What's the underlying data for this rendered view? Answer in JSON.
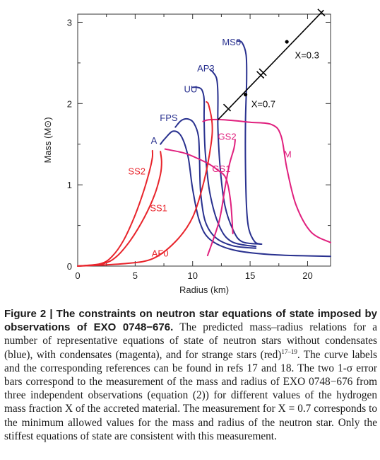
{
  "chart_data": {
    "type": "line",
    "xlabel": "Radius (km)",
    "ylabel": "Mass (M⊙)",
    "xlim": [
      0,
      22
    ],
    "ylim": [
      0,
      3.1
    ],
    "x_ticks": [
      "0",
      "5",
      "10",
      "15",
      "20"
    ],
    "y_ticks": [
      "0",
      "1",
      "2",
      "3"
    ],
    "colors": {
      "normal": "#29318f",
      "condensate": "#e0207e",
      "strange": "#e8242b",
      "constraint": "#000000"
    },
    "series": [
      {
        "name": "MS0",
        "group": "normal",
        "label_at": [
          14.2,
          2.76
        ],
        "points": [
          [
            15.9,
            0.27
          ],
          [
            15.4,
            0.3
          ],
          [
            14.9,
            0.45
          ],
          [
            14.7,
            0.7
          ],
          [
            14.6,
            1.2
          ],
          [
            14.6,
            1.8
          ],
          [
            14.7,
            2.3
          ],
          [
            14.65,
            2.6
          ],
          [
            14.3,
            2.75
          ],
          [
            13.9,
            2.77
          ]
        ]
      },
      {
        "name": "AP3",
        "group": "normal",
        "label_at": [
          11.9,
          2.44
        ],
        "points": [
          [
            16,
            0.27
          ],
          [
            14.3,
            0.3
          ],
          [
            13.5,
            0.45
          ],
          [
            12.8,
            0.75
          ],
          [
            12.4,
            1.2
          ],
          [
            12.2,
            1.7
          ],
          [
            12.2,
            2.1
          ],
          [
            12.1,
            2.3
          ],
          [
            11.8,
            2.38
          ],
          [
            11.5,
            2.42
          ]
        ]
      },
      {
        "name": "UU",
        "group": "normal",
        "label_at": [
          10.4,
          2.18
        ],
        "points": [
          [
            15.5,
            0.24
          ],
          [
            13.4,
            0.3
          ],
          [
            12.3,
            0.5
          ],
          [
            11.5,
            0.9
          ],
          [
            11.1,
            1.4
          ],
          [
            11.0,
            1.8
          ],
          [
            11.0,
            2.05
          ],
          [
            10.8,
            2.17
          ],
          [
            10.4,
            2.2
          ],
          [
            10.0,
            2.2
          ]
        ]
      },
      {
        "name": "FPS",
        "group": "normal",
        "label_at": [
          8.7,
          1.83
        ],
        "points": [
          [
            15.5,
            0.22
          ],
          [
            13.5,
            0.25
          ],
          [
            12.0,
            0.35
          ],
          [
            11.1,
            0.55
          ],
          [
            10.7,
            0.9
          ],
          [
            10.6,
            1.3
          ],
          [
            10.5,
            1.6
          ],
          [
            10.1,
            1.76
          ],
          [
            9.6,
            1.81
          ],
          [
            9.0,
            1.79
          ],
          [
            8.5,
            1.71
          ]
        ]
      },
      {
        "name": "A",
        "group": "normal",
        "label_at": [
          6.9,
          1.55
        ],
        "points": [
          [
            22,
            0.12
          ],
          [
            17,
            0.14
          ],
          [
            13.5,
            0.2
          ],
          [
            11.5,
            0.33
          ],
          [
            10.6,
            0.55
          ],
          [
            10.0,
            0.95
          ],
          [
            9.6,
            1.35
          ],
          [
            9.0,
            1.6
          ],
          [
            8.3,
            1.66
          ],
          [
            7.6,
            1.57
          ],
          [
            7.2,
            1.5
          ]
        ]
      },
      {
        "name": "GS2",
        "group": "condensate",
        "label_at": [
          13.8,
          1.6
        ],
        "points": [
          [
            11.3,
            0.13
          ],
          [
            12.3,
            0.55
          ],
          [
            12.8,
            0.95
          ],
          [
            13.2,
            1.25
          ],
          [
            13.6,
            1.45
          ],
          [
            13.7,
            1.55
          ]
        ]
      },
      {
        "name": "GS1",
        "group": "condensate",
        "label_at": [
          13.3,
          1.2
        ],
        "points": [
          [
            13.5,
            0.4
          ],
          [
            13.3,
            0.8
          ],
          [
            12.9,
            1.08
          ],
          [
            12.2,
            1.18
          ],
          [
            11.5,
            1.25
          ],
          [
            10.5,
            1.32
          ],
          [
            9.3,
            1.39
          ],
          [
            7.6,
            1.44
          ]
        ]
      },
      {
        "name": "M",
        "group": "condensate",
        "label_at": [
          18.6,
          1.38
        ],
        "points": [
          [
            22,
            0.29
          ],
          [
            20.3,
            0.42
          ],
          [
            19.0,
            0.75
          ],
          [
            18.2,
            1.2
          ],
          [
            17.7,
            1.6
          ],
          [
            16.9,
            1.74
          ],
          [
            15,
            1.77
          ],
          [
            12.7,
            1.8
          ],
          [
            11.4,
            1.8
          ],
          [
            10.9,
            1.78
          ]
        ]
      },
      {
        "name": "SS2",
        "group": "strange",
        "label_at": [
          5.9,
          1.17
        ],
        "points": [
          [
            0,
            0
          ],
          [
            2.0,
            0.03
          ],
          [
            3.0,
            0.12
          ],
          [
            4.0,
            0.32
          ],
          [
            5.0,
            0.63
          ],
          [
            5.8,
            0.95
          ],
          [
            6.3,
            1.2
          ],
          [
            6.5,
            1.34
          ],
          [
            6.5,
            1.42
          ]
        ]
      },
      {
        "name": "SS1",
        "group": "strange",
        "label_at": [
          7.8,
          0.72
        ],
        "points": [
          [
            0,
            0
          ],
          [
            2.2,
            0.03
          ],
          [
            3.4,
            0.12
          ],
          [
            4.6,
            0.32
          ],
          [
            5.8,
            0.6
          ],
          [
            6.7,
            0.88
          ],
          [
            7.2,
            1.13
          ],
          [
            7.3,
            1.28
          ],
          [
            7.2,
            1.41
          ]
        ]
      },
      {
        "name": "AF0",
        "group": "strange",
        "label_at": [
          7.9,
          0.16
        ],
        "points": [
          [
            0,
            0
          ],
          [
            4,
            0.03
          ],
          [
            6.5,
            0.09
          ],
          [
            8.5,
            0.3
          ],
          [
            10,
            0.6
          ],
          [
            11,
            1.05
          ],
          [
            11.6,
            1.5
          ],
          [
            11.7,
            1.75
          ],
          [
            11.4,
            1.98
          ],
          [
            11.2,
            2.02
          ]
        ]
      }
    ],
    "constraint": {
      "line": [
        [
          12.2,
          1.8
        ],
        [
          21.4,
          3.15
        ]
      ],
      "ticks": [
        [
          13.0,
          1.95
        ],
        [
          21.2,
          3.12
        ]
      ],
      "double_tick": [
        16.0,
        2.37
      ],
      "points": [
        {
          "label": "X=0.7",
          "at": [
            14.6,
            2.11
          ],
          "label_at": [
            15.1,
            2.0
          ]
        },
        {
          "label": "X=0.3",
          "at": [
            18.2,
            2.76
          ],
          "label_at": [
            18.9,
            2.6
          ]
        }
      ]
    }
  },
  "caption": {
    "lead": "Figure 2 | The constraints on neutron star equations of state imposed by observations of EXO 0748−676.",
    "text_1": " The predicted mass–radius relations for a number of representative equations of state of neutron stars without condensates (blue), with condensates (magenta), and for strange stars (red)",
    "refs": "17–19",
    "text_2": ". The curve labels and the corresponding references can be found in refs 17 and 18. The two 1-σ error bars correspond to the measurement of the mass and radius of EXO 0748−676 from three independent observations (equation (2)) for different values of the hydrogen mass fraction X of the accreted material. The measurement for X = 0.7 corresponds to the minimum allowed values for the mass and radius of the neutron star. Only the stiffest equations of state are consistent with this measurement."
  }
}
